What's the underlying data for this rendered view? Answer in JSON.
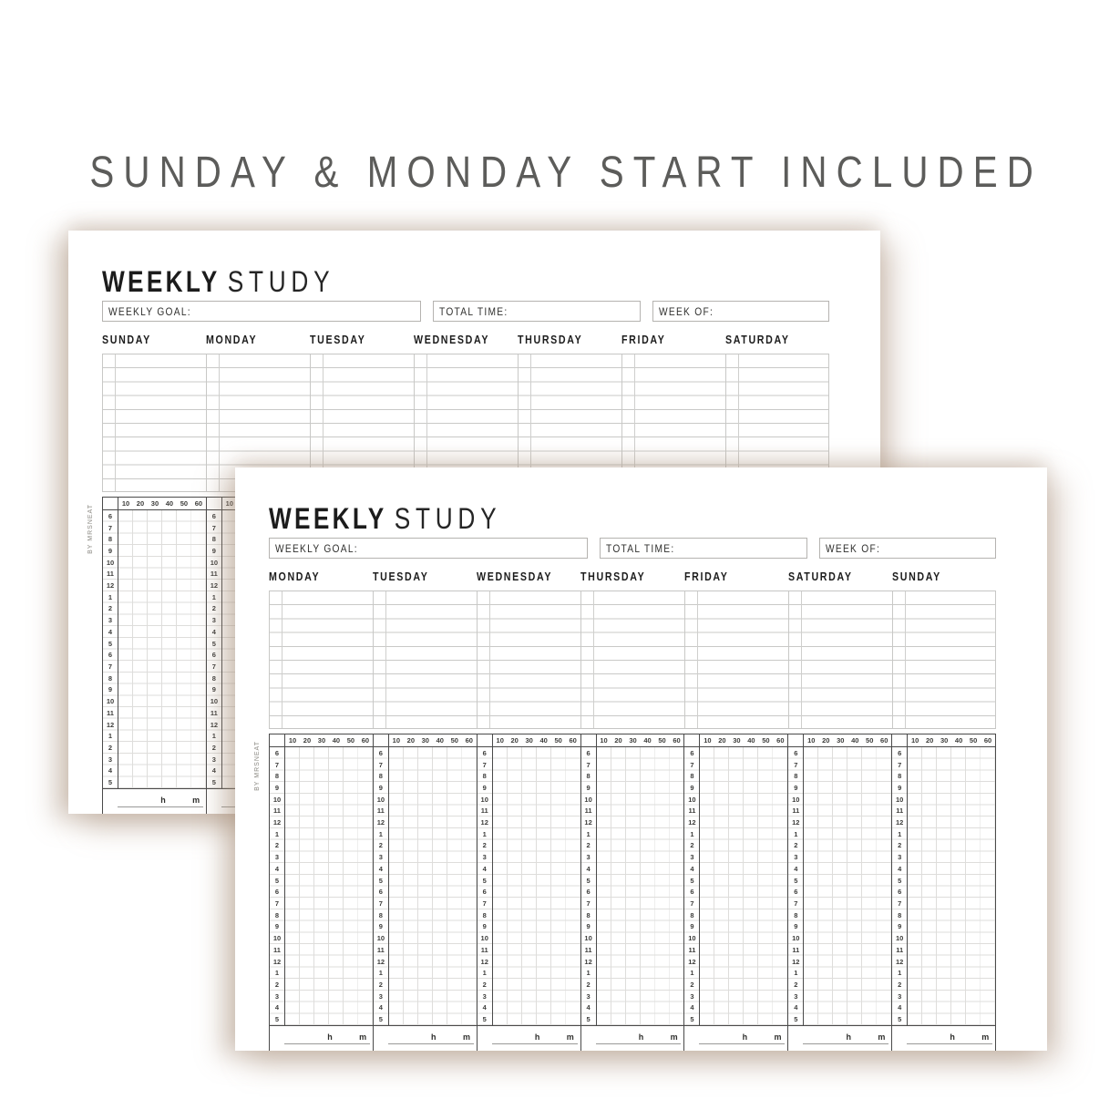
{
  "banner": {
    "text": "SUNDAY & MONDAY START INCLUDED"
  },
  "shared": {
    "title_bold": "WEEKLY",
    "title_light": "STUDY",
    "fields": [
      {
        "label": "WEEKLY GOAL:"
      },
      {
        "label": "TOTAL TIME:"
      },
      {
        "label": "WEEK OF:"
      }
    ],
    "note_rows": 10,
    "minute_labels": [
      "10",
      "20",
      "30",
      "40",
      "50",
      "60"
    ],
    "hour_labels": [
      "6",
      "7",
      "8",
      "9",
      "10",
      "11",
      "12",
      "1",
      "2",
      "3",
      "4",
      "5",
      "6",
      "7",
      "8",
      "9",
      "10",
      "11",
      "12",
      "1",
      "2",
      "3",
      "4",
      "5"
    ],
    "hours_total_label": "h",
    "minutes_total_label": "m",
    "watermark": "BY MRSNEAT"
  },
  "pages": [
    {
      "name": "sunday-start",
      "days": [
        "SUNDAY",
        "MONDAY",
        "TUESDAY",
        "WEDNESDAY",
        "THURSDAY",
        "FRIDAY",
        "SATURDAY"
      ]
    },
    {
      "name": "monday-start",
      "days": [
        "MONDAY",
        "TUESDAY",
        "WEDNESDAY",
        "THURSDAY",
        "FRIDAY",
        "SATURDAY",
        "SUNDAY"
      ]
    }
  ],
  "colors": {
    "paper": "#ffffff",
    "ink": "#1d1d1d",
    "banner_text": "#5c5c5a",
    "line_light": "#c6c6c4",
    "line_faint": "#dedddb",
    "line_strong": "#4a4a4a",
    "shadow": "rgba(168,142,122,0.42)"
  }
}
